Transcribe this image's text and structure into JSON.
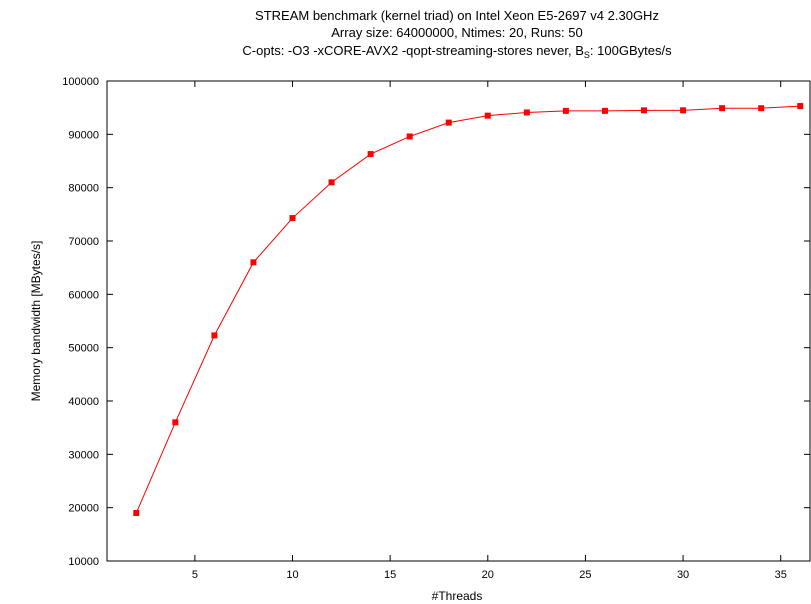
{
  "chart_data": {
    "type": "line",
    "title_lines": [
      "STREAM benchmark (kernel triad) on Intel Xeon E5-2697 v4 2.30GHz",
      "Array size: 64000000, Ntimes: 20, Runs: 50"
    ],
    "title_line3_prefix": "C-opts: -O3 -xCORE-AVX2 -qopt-streaming-stores never, B",
    "title_line3_sub": "S",
    "title_line3_suffix": ": 100GBytes/s",
    "xlabel": "#Threads",
    "ylabel": "Memory bandwidth [MBytes/s]",
    "xlim": [
      0.5,
      36.5
    ],
    "ylim": [
      10000,
      100000
    ],
    "x_ticks": [
      5,
      10,
      15,
      20,
      25,
      30,
      35
    ],
    "y_ticks": [
      10000,
      20000,
      30000,
      40000,
      50000,
      60000,
      70000,
      80000,
      90000,
      100000
    ],
    "series": [
      {
        "color": "#ff0000",
        "marker": "square",
        "x": [
          2,
          4,
          6,
          8,
          10,
          12,
          14,
          16,
          18,
          20,
          22,
          24,
          26,
          28,
          30,
          32,
          34,
          36
        ],
        "y": [
          19000,
          36000,
          52300,
          66000,
          74300,
          81000,
          86300,
          89600,
          92200,
          93500,
          94100,
          94400,
          94400,
          94500,
          94500,
          94900,
          94900,
          95300
        ]
      }
    ]
  }
}
